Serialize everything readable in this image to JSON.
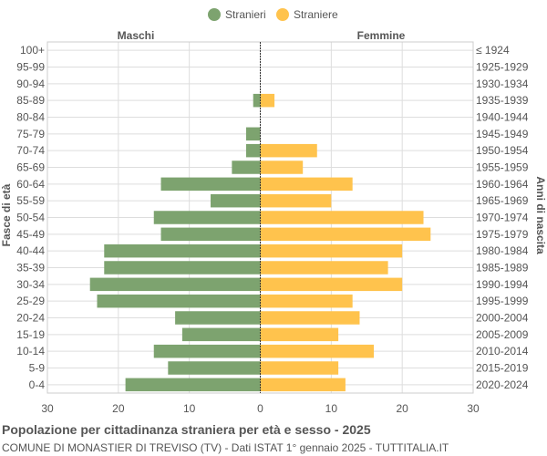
{
  "chart_data": {
    "type": "bar",
    "orientation": "horizontal-pyramid",
    "title": "Popolazione per cittadinanza straniera per età e sesso - 2025",
    "subtitle": "COMUNE DI MONASTIER DI TREVISO (TV) - Dati ISTAT 1° gennaio 2025 - TUTTITALIA.IT",
    "left_header": "Maschi",
    "right_header": "Femmine",
    "ylabel_left": "Fasce di età",
    "ylabel_right": "Anni di nascita",
    "xlim": [
      -30,
      30
    ],
    "xticks": [
      -30,
      -20,
      -10,
      0,
      10,
      20,
      30
    ],
    "xtick_labels": [
      "30",
      "20",
      "10",
      "0",
      "10",
      "20",
      "30"
    ],
    "grid": true,
    "legend_position": "top-center",
    "series": [
      {
        "name": "Stranieri",
        "color": "#7da36f",
        "values": [
          0,
          0,
          0,
          1,
          0,
          2,
          2,
          4,
          14,
          7,
          15,
          14,
          22,
          22,
          24,
          23,
          12,
          11,
          15,
          13,
          19
        ]
      },
      {
        "name": "Straniere",
        "color": "#ffc34d",
        "values": [
          0,
          0,
          0,
          2,
          0,
          0,
          8,
          6,
          13,
          10,
          23,
          24,
          20,
          18,
          20,
          13,
          14,
          11,
          16,
          11,
          12
        ]
      }
    ],
    "categories": [
      "100+",
      "95-99",
      "90-94",
      "85-89",
      "80-84",
      "75-79",
      "70-74",
      "65-69",
      "60-64",
      "55-59",
      "50-54",
      "45-49",
      "40-44",
      "35-39",
      "30-34",
      "25-29",
      "20-24",
      "15-19",
      "10-14",
      "5-9",
      "0-4"
    ],
    "birth_years": [
      "≤ 1924",
      "1925-1929",
      "1930-1934",
      "1935-1939",
      "1940-1944",
      "1945-1949",
      "1950-1954",
      "1955-1959",
      "1960-1964",
      "1965-1969",
      "1970-1974",
      "1975-1979",
      "1980-1984",
      "1985-1989",
      "1990-1994",
      "1995-1999",
      "2000-2004",
      "2005-2009",
      "2010-2014",
      "2015-2019",
      "2020-2024"
    ]
  }
}
